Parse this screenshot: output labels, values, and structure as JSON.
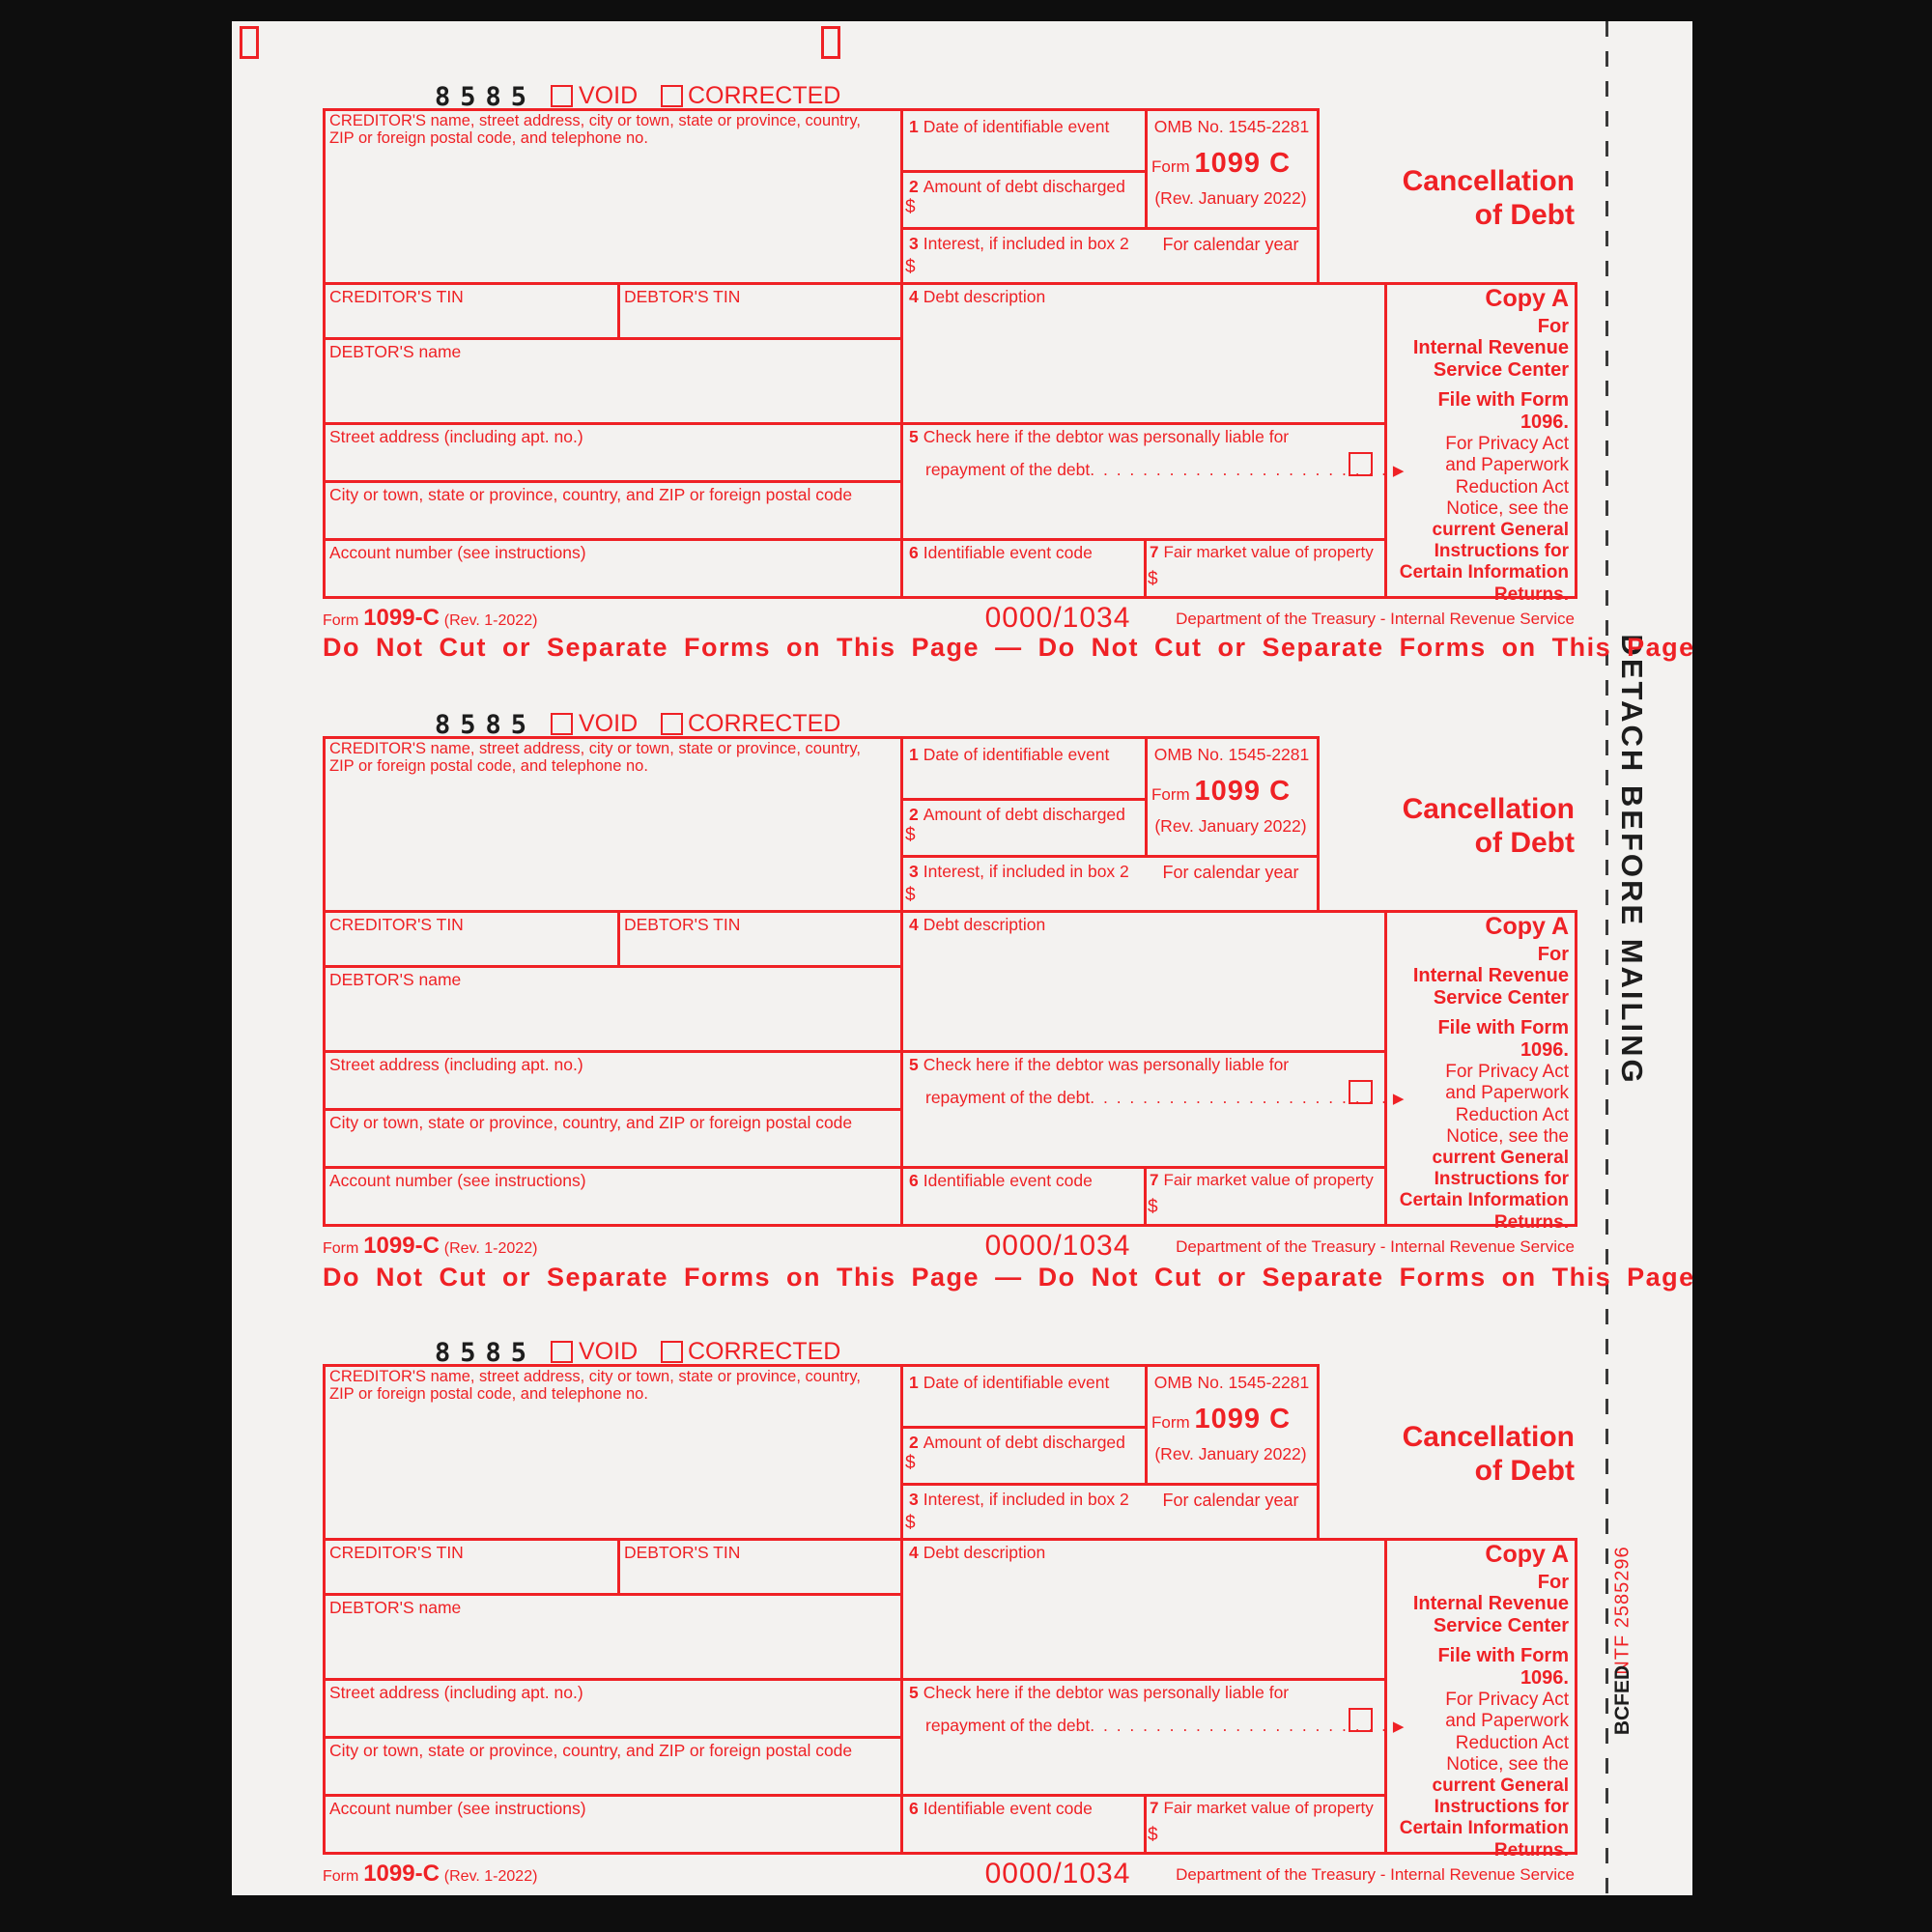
{
  "page": {
    "print_code": "8585",
    "void_label": "VOID",
    "corrected_label": "CORRECTED",
    "do_not_cut": "Do Not Cut or Separate Forms on This Page — Do Not Cut or Separate Forms on This Page",
    "detach_label": "DETACH BEFORE MAILING",
    "stub_ntf": "NTF 2585296",
    "stub_bcfed": "BCFED",
    "colors": {
      "dropout_red": "#ef2125",
      "ink_black": "#1d1d1d",
      "paper": "#f3f2f0"
    }
  },
  "form": {
    "creditor_label": "CREDITOR'S name, street address, city or town, state or province, country, ZIP or foreign postal code, and telephone no.",
    "box1_num": "1",
    "box1_label": "Date of identifiable event",
    "omb": "OMB No. 1545-2281",
    "form_word": "Form",
    "form_number": "1099 C",
    "revision": "(Rev. January 2022)",
    "calendar": "For calendar year",
    "box2_num": "2",
    "box2_label": "Amount of debt discharged",
    "box3_num": "3",
    "box3_label": "Interest, if included in box 2",
    "dollar": "$",
    "title_line1": "Cancellation",
    "title_line2": "of Debt",
    "creditor_tin": "CREDITOR'S TIN",
    "debtor_tin": "DEBTOR'S TIN",
    "debtor_name": "DEBTOR'S name",
    "street": "Street address (including apt. no.)",
    "city": "City or town, state or province, country, and ZIP or foreign postal code",
    "account": "Account number (see instructions)",
    "box4_num": "4",
    "box4_label": "Debt description",
    "box5_num": "5",
    "box5_line1": "Check here if the debtor was personally liable for",
    "box5_line2": "repayment of the debt",
    "box5_leader": ". . . . . . . . . . . . . . . . . . . . . . .",
    "box5_arrow": "▶",
    "box6_num": "6",
    "box6_label": "Identifiable event code",
    "box7_num": "7",
    "box7_label": "Fair market value of property",
    "copy_a": {
      "title": "Copy A",
      "bold1": [
        "For",
        "Internal Revenue",
        "Service Center"
      ],
      "file_line": "File with Form 1096.",
      "regular": [
        "For Privacy Act",
        "and Paperwork",
        "Reduction Act",
        "Notice, see the"
      ],
      "bold2": [
        "current General",
        "Instructions for",
        "Certain Information",
        "Returns."
      ]
    },
    "footer": {
      "form_word": "Form",
      "form_number": "1099-C",
      "revision": "(Rev. 1-2022)",
      "code": "0000/1034",
      "department": "Department of the Treasury - Internal Revenue Service"
    }
  }
}
